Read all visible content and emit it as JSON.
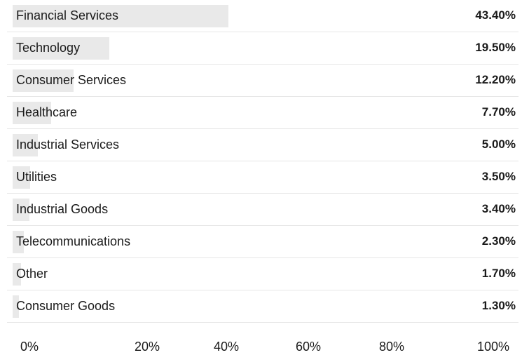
{
  "chart_data": {
    "type": "bar",
    "orientation": "horizontal",
    "categories": [
      "Financial Services",
      "Technology",
      "Consumer Services",
      "Healthcare",
      "Industrial Services",
      "Utilities",
      "Industrial Goods",
      "Telecommunications",
      "Other",
      "Consumer Goods"
    ],
    "values": [
      43.4,
      19.5,
      12.2,
      7.7,
      5.0,
      3.5,
      3.4,
      2.3,
      1.7,
      1.3
    ],
    "value_labels": [
      "43.40%",
      "19.50%",
      "12.20%",
      "7.70%",
      "5.00%",
      "3.50%",
      "3.40%",
      "2.30%",
      "1.70%",
      "1.30%"
    ],
    "xlim": [
      0,
      100
    ],
    "xticks": [
      0,
      20,
      40,
      60,
      80,
      100
    ],
    "xtick_labels": [
      "0%",
      "20%",
      "40%",
      "60%",
      "80%",
      "100%"
    ],
    "grid": false,
    "legend": "none",
    "colors": {
      "bar": "#e9e9e9",
      "divider": "#e6e6e6",
      "text": "#1a1a1a"
    }
  }
}
